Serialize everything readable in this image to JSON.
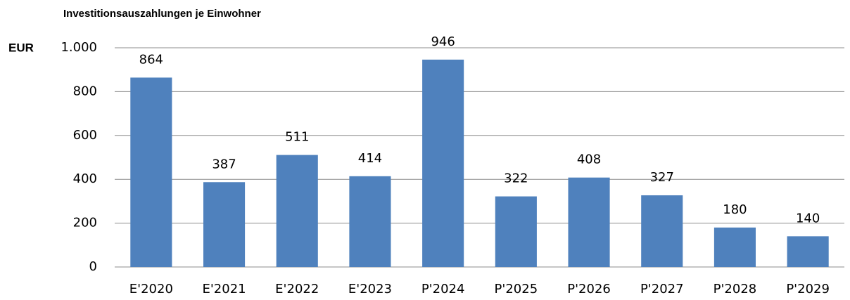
{
  "chart_data": {
    "type": "bar",
    "title": "Investitionsauszahlungen je Einwohner",
    "ylabel": "EUR",
    "categories": [
      "E'2020",
      "E'2021",
      "E'2022",
      "E'2023",
      "P'2024",
      "P'2025",
      "P'2026",
      "P'2027",
      "P'2028",
      "P'2029"
    ],
    "values": [
      864,
      387,
      511,
      414,
      946,
      322,
      408,
      327,
      180,
      140
    ],
    "color": "#4f81bd",
    "ylim": [
      0,
      1000
    ],
    "yticks": [
      0,
      200,
      400,
      600,
      800,
      {
        "value": 1000,
        "label": "1.000"
      }
    ],
    "grid": true
  }
}
